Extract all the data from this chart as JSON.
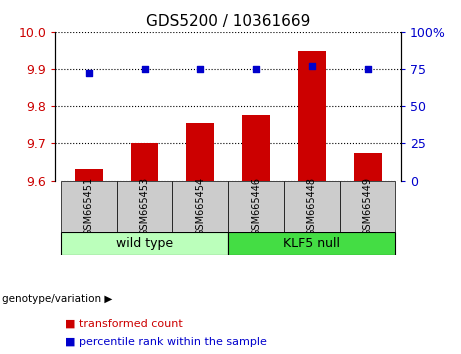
{
  "title": "GDS5200 / 10361669",
  "samples": [
    "GSM665451",
    "GSM665453",
    "GSM665454",
    "GSM665446",
    "GSM665448",
    "GSM665449"
  ],
  "bar_values": [
    9.63,
    9.7,
    9.755,
    9.775,
    9.948,
    9.675
  ],
  "percentile_values": [
    72,
    75,
    75,
    75,
    77,
    75
  ],
  "ylim_left": [
    9.6,
    10.0
  ],
  "ylim_right": [
    0,
    100
  ],
  "yticks_left": [
    9.6,
    9.7,
    9.8,
    9.9,
    10.0
  ],
  "yticks_right": [
    0,
    25,
    50,
    75,
    100
  ],
  "ytick_right_labels": [
    "0",
    "25",
    "50",
    "75",
    "100%"
  ],
  "bar_color": "#cc0000",
  "dot_color": "#0000cc",
  "groups": [
    {
      "label": "wild type",
      "indices": [
        0,
        1,
        2
      ],
      "color": "#bbffbb"
    },
    {
      "label": "KLF5 null",
      "indices": [
        3,
        4,
        5
      ],
      "color": "#44dd44"
    }
  ],
  "group_label": "genotype/variation ▶",
  "legend_items": [
    {
      "label": "transformed count",
      "color": "#cc0000"
    },
    {
      "label": "percentile rank within the sample",
      "color": "#0000cc"
    }
  ],
  "tick_label_bg": "#cccccc",
  "font_size_title": 11,
  "font_size_ticks": 9,
  "font_size_group": 9,
  "font_size_legend": 8
}
